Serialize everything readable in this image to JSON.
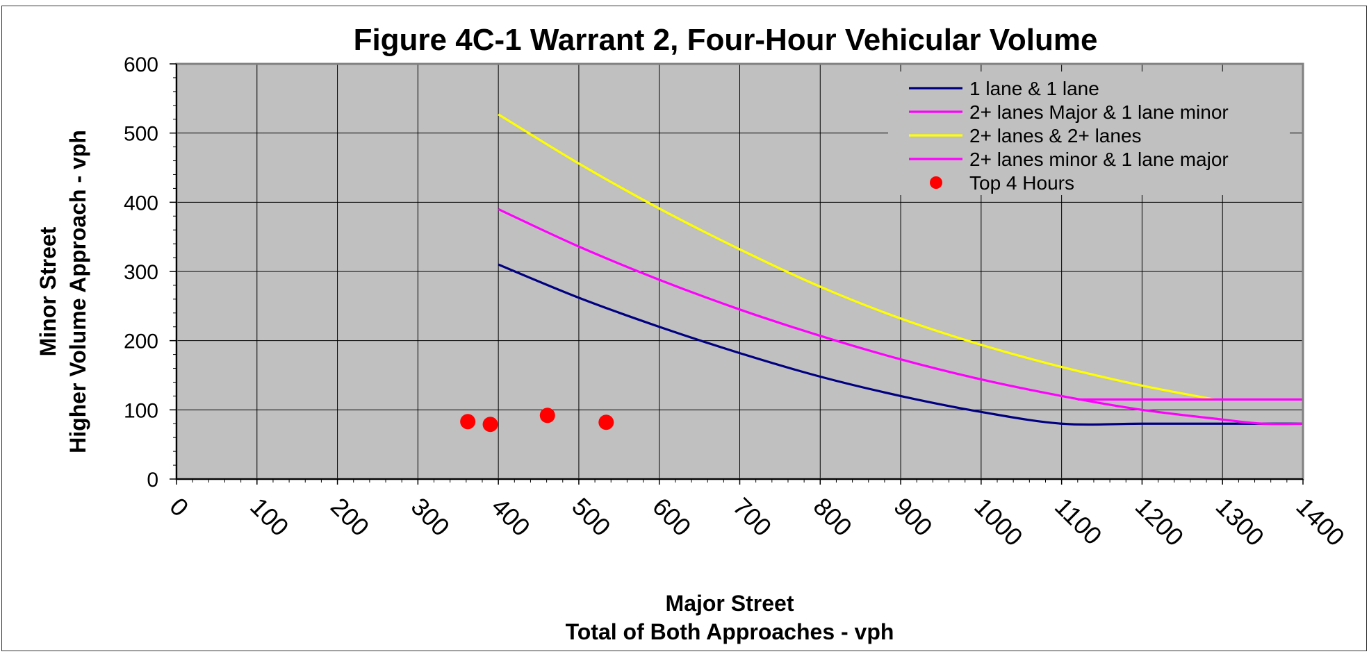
{
  "chart_data": {
    "type": "line",
    "title": "Figure 4C-1 Warrant 2, Four-Hour Vehicular Volume",
    "xlabel_line1": "Major Street",
    "xlabel_line2": "Total of Both Approaches - vph",
    "ylabel_line1": "Minor Street",
    "ylabel_line2": "Higher Volume Approach - vph",
    "xlim": [
      0,
      1400
    ],
    "ylim": [
      0,
      600
    ],
    "x_ticks": [
      "0",
      "100",
      "200",
      "300",
      "400",
      "500",
      "600",
      "700",
      "800",
      "900",
      "1000",
      "1100",
      "1200",
      "1300",
      "1400"
    ],
    "y_ticks": [
      "0",
      "100",
      "200",
      "300",
      "400",
      "500",
      "600"
    ],
    "grid": true,
    "legend_position": "top-right",
    "plot_background": "#c0c0c0",
    "series": [
      {
        "name": "1 lane & 1 lane",
        "color": "#000080",
        "x": [
          400,
          500,
          600,
          700,
          800,
          900,
          1000,
          1100,
          1200,
          1300,
          1400
        ],
        "y": [
          310,
          262,
          220,
          182,
          148,
          120,
          97,
          80,
          80,
          80,
          80
        ]
      },
      {
        "name": "2+ lanes Major & 1 lane minor",
        "color": "#ff00ff",
        "x": [
          400,
          500,
          600,
          700,
          800,
          900,
          1000,
          1100,
          1200,
          1300,
          1350,
          1400
        ],
        "y": [
          390,
          336,
          288,
          245,
          207,
          173,
          144,
          120,
          100,
          86,
          80,
          80
        ]
      },
      {
        "name": "2+ lanes & 2+ lanes",
        "color": "#ffff00",
        "x": [
          400,
          500,
          600,
          700,
          800,
          900,
          1000,
          1100,
          1200,
          1290
        ],
        "y": [
          527,
          456,
          391,
          332,
          278,
          232,
          194,
          162,
          135,
          115
        ]
      },
      {
        "name": "2+ lanes minor & 1 lane major",
        "color": "#ff00ff",
        "x": [
          1120,
          1200,
          1300,
          1400
        ],
        "y": [
          115,
          115,
          115,
          115
        ]
      }
    ],
    "points": {
      "name": "Top 4 Hours",
      "color": "#ff0000",
      "x": [
        362,
        390,
        461,
        534
      ],
      "y": [
        83,
        79,
        92,
        82
      ]
    }
  }
}
